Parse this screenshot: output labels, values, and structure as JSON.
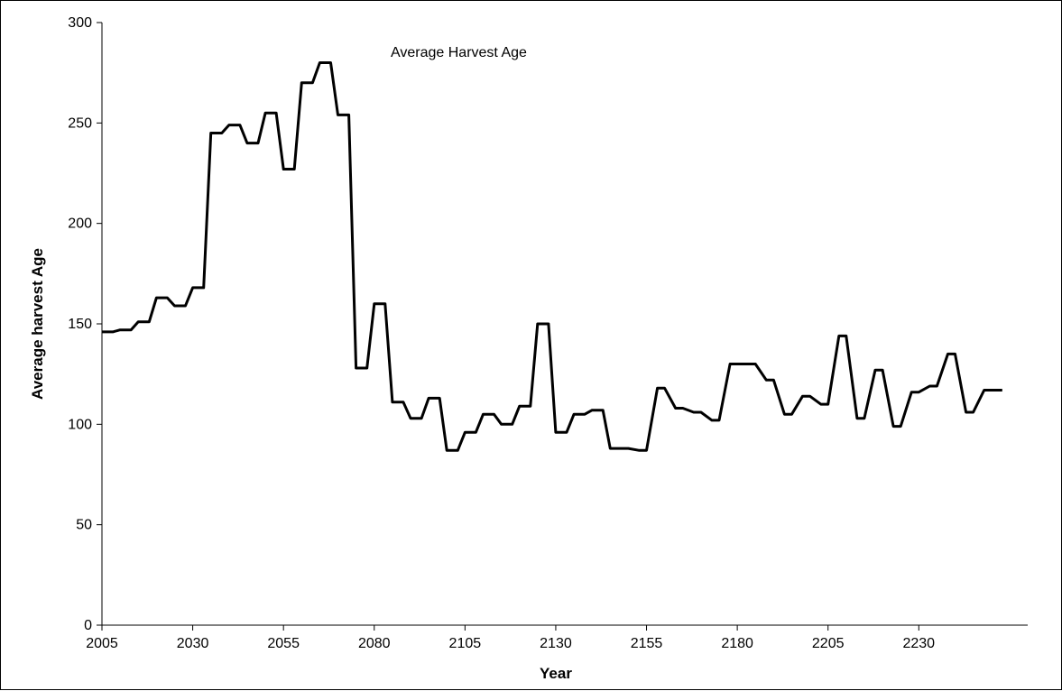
{
  "chart_data": {
    "type": "line",
    "title": "Average Harvest Age",
    "xlabel": "Year",
    "ylabel": "Average harvest Age",
    "xlim": [
      2005,
      2260
    ],
    "ylim": [
      0,
      300
    ],
    "x_ticks": [
      2005,
      2030,
      2055,
      2080,
      2105,
      2130,
      2155,
      2180,
      2205,
      2230
    ],
    "y_ticks": [
      0,
      50,
      100,
      150,
      200,
      250,
      300
    ],
    "grid": false,
    "legend": "none",
    "series": [
      {
        "color": "#000000",
        "x": [
          2005,
          2008,
          2010,
          2013,
          2015,
          2018,
          2020,
          2023,
          2025,
          2028,
          2030,
          2033,
          2035,
          2038,
          2040,
          2043,
          2045,
          2048,
          2050,
          2053,
          2055,
          2058,
          2060,
          2063,
          2065,
          2068,
          2070,
          2073,
          2075,
          2078,
          2080,
          2083,
          2085,
          2088,
          2090,
          2093,
          2095,
          2098,
          2100,
          2103,
          2105,
          2108,
          2110,
          2113,
          2115,
          2118,
          2120,
          2123,
          2125,
          2128,
          2130,
          2133,
          2135,
          2138,
          2140,
          2143,
          2145,
          2148,
          2150,
          2153,
          2155,
          2158,
          2160,
          2163,
          2165,
          2168,
          2170,
          2173,
          2175,
          2178,
          2180,
          2183,
          2185,
          2188,
          2190,
          2193,
          2195,
          2198,
          2200,
          2203,
          2205,
          2208,
          2210,
          2213,
          2215,
          2218,
          2220,
          2223,
          2225,
          2228,
          2230,
          2233,
          2235,
          2238,
          2240,
          2243,
          2245,
          2248,
          2250,
          2253
        ],
        "values": [
          146,
          146,
          147,
          147,
          151,
          151,
          163,
          163,
          159,
          159,
          168,
          168,
          245,
          245,
          249,
          249,
          240,
          240,
          255,
          255,
          227,
          227,
          270,
          270,
          280,
          280,
          254,
          254,
          128,
          128,
          160,
          160,
          111,
          111,
          103,
          103,
          113,
          113,
          87,
          87,
          96,
          96,
          105,
          105,
          100,
          100,
          109,
          109,
          150,
          150,
          96,
          96,
          105,
          105,
          107,
          107,
          88,
          88,
          88,
          87,
          87,
          118,
          118,
          108,
          108,
          106,
          106,
          102,
          102,
          130,
          130,
          130,
          130,
          122,
          122,
          105,
          105,
          114,
          114,
          110,
          110,
          144,
          144,
          103,
          103,
          127,
          127,
          99,
          99,
          116,
          116,
          119,
          119,
          135,
          135,
          106,
          106,
          117,
          117,
          117
        ]
      }
    ]
  }
}
